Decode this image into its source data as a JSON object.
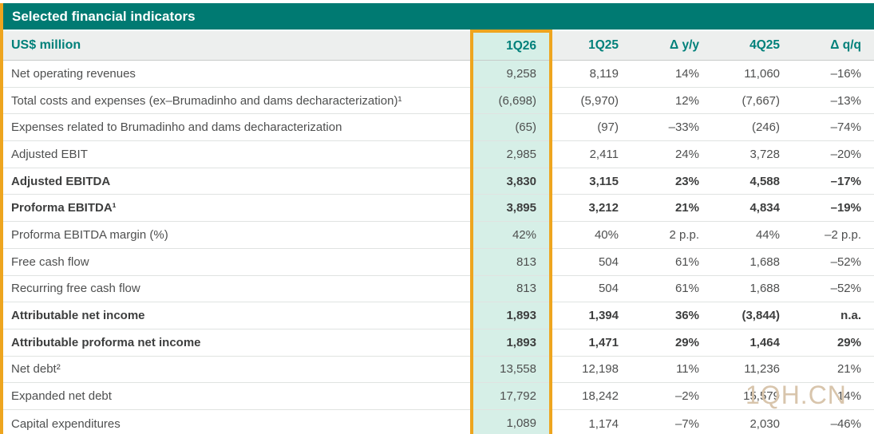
{
  "title": "Selected financial indicators",
  "watermark": "1QH.CN",
  "table": {
    "unit_header": "US$ million",
    "columns": [
      "1Q26",
      "1Q25",
      "Δ y/y",
      "4Q25",
      "Δ q/q"
    ],
    "highlight_column": "1Q26",
    "rows": [
      {
        "label": "Net operating revenues",
        "bold": false,
        "values": [
          "9,258",
          "8,119",
          "14%",
          "11,060",
          "–16%"
        ]
      },
      {
        "label": "Total costs and expenses (ex–Brumadinho and dams decharacterization)¹",
        "bold": false,
        "values": [
          "(6,698)",
          "(5,970)",
          "12%",
          "(7,667)",
          "–13%"
        ]
      },
      {
        "label": "Expenses related to Brumadinho and dams decharacterization",
        "bold": false,
        "values": [
          "(65)",
          "(97)",
          "–33%",
          "(246)",
          "–74%"
        ]
      },
      {
        "label": "Adjusted EBIT",
        "bold": false,
        "values": [
          "2,985",
          "2,411",
          "24%",
          "3,728",
          "–20%"
        ]
      },
      {
        "label": "Adjusted EBITDA",
        "bold": true,
        "values": [
          "3,830",
          "3,115",
          "23%",
          "4,588",
          "–17%"
        ]
      },
      {
        "label": "Proforma EBITDA¹",
        "bold": true,
        "values": [
          "3,895",
          "3,212",
          "21%",
          "4,834",
          "–19%"
        ]
      },
      {
        "label": "Proforma EBITDA margin (%)",
        "bold": false,
        "values": [
          "42%",
          "40%",
          "2 p.p.",
          "44%",
          "–2 p.p."
        ]
      },
      {
        "label": "Free cash flow",
        "bold": false,
        "values": [
          "813",
          "504",
          "61%",
          "1,688",
          "–52%"
        ]
      },
      {
        "label": "Recurring free cash flow",
        "bold": false,
        "values": [
          "813",
          "504",
          "61%",
          "1,688",
          "–52%"
        ]
      },
      {
        "label": "Attributable net income",
        "bold": true,
        "values": [
          "1,893",
          "1,394",
          "36%",
          "(3,844)",
          "n.a."
        ]
      },
      {
        "label": "Attributable proforma net income",
        "bold": true,
        "values": [
          "1,893",
          "1,471",
          "29%",
          "1,464",
          "29%"
        ]
      },
      {
        "label": "Net debt²",
        "bold": false,
        "values": [
          "13,558",
          "12,198",
          "11%",
          "11,236",
          "21%"
        ]
      },
      {
        "label": "Expanded net debt",
        "bold": false,
        "values": [
          "17,792",
          "18,242",
          "–2%",
          "15,579",
          "14%"
        ]
      },
      {
        "label": "Capital expenditures",
        "bold": false,
        "values": [
          "1,089",
          "1,174",
          "–7%",
          "2,030",
          "–46%"
        ]
      }
    ]
  },
  "colors": {
    "title_bar_bg": "#007A72",
    "header_text": "#00807A",
    "header_row_bg": "#EDEFEE",
    "highlight_bg": "#D6EFE7",
    "highlight_border": "#EEA51F",
    "body_text": "#4E4F4F",
    "grid_line": "#E0E3E1",
    "watermark_color": "#D8C5AC"
  }
}
